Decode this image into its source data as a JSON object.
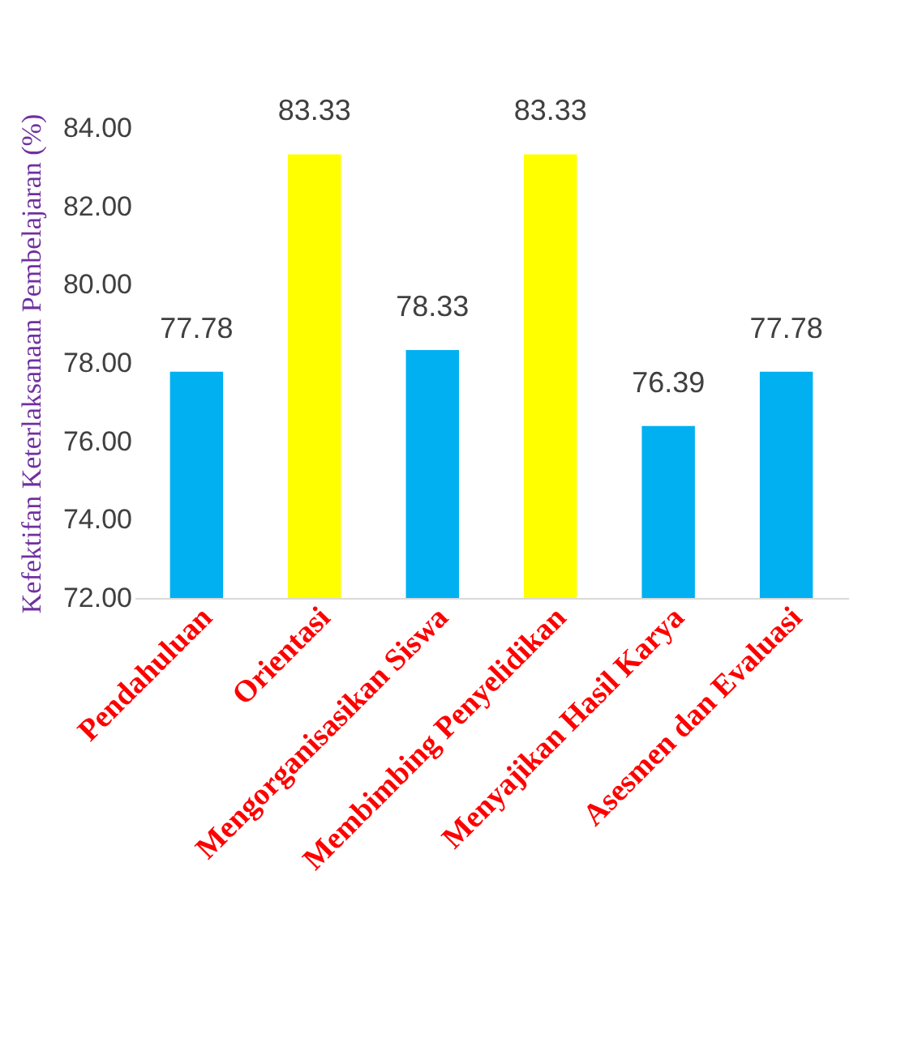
{
  "chart_data": {
    "type": "bar",
    "ylabel": "Kefektifan Keterlaksanaan Pembelajaran (%)",
    "categories": [
      "Pendahuluan",
      "Orientasi",
      "Mengorganisasikan Siswa",
      "Membimbing Penyelidikan",
      "Menyajikan Hasil Karya",
      "Asesmen dan Evaluasi"
    ],
    "values": [
      77.78,
      83.33,
      78.33,
      83.33,
      76.39,
      77.78
    ],
    "colors": [
      "#00b0f0",
      "#ffff00",
      "#00b0f0",
      "#ffff00",
      "#00b0f0",
      "#00b0f0"
    ],
    "ylim": [
      72,
      84
    ],
    "yticks": [
      {
        "value": 72,
        "label": "72.00"
      },
      {
        "value": 74,
        "label": "74.00"
      },
      {
        "value": 76,
        "label": "76.00"
      },
      {
        "value": 78,
        "label": "78.00"
      },
      {
        "value": 80,
        "label": "80.00"
      },
      {
        "value": 82,
        "label": "82.00"
      },
      {
        "value": 84,
        "label": "84.00"
      }
    ],
    "data_labels": true,
    "grid": false
  }
}
